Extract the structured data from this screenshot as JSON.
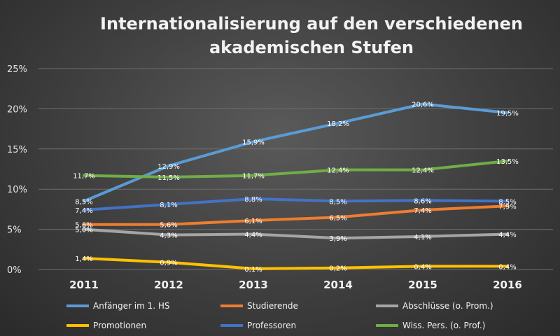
{
  "chart_data": {
    "type": "line",
    "title_lines": [
      "Internationalisierung auf den verschiedenen",
      "akademischen Stufen"
    ],
    "categories": [
      "2011",
      "2012",
      "2013",
      "2014",
      "2015",
      "2016"
    ],
    "ylim": [
      0,
      25
    ],
    "yticks": [
      0,
      5,
      10,
      15,
      20,
      25
    ],
    "ytick_labels": [
      "0%",
      "5%",
      "10%",
      "15%",
      "20%",
      "25%"
    ],
    "xlabel": "",
    "ylabel": "",
    "grid": true,
    "legend_position": "bottom",
    "series": [
      {
        "name": "Anfänger im 1. HS",
        "color": "#5b9bd5",
        "values": [
          8.5,
          12.9,
          15.9,
          18.2,
          20.6,
          19.5
        ],
        "labels": [
          "8,5%",
          "12,9%",
          "15,9%",
          "18,2%",
          "20,6%",
          "19,5%"
        ]
      },
      {
        "name": "Studierende",
        "color": "#ed7d31",
        "values": [
          5.6,
          5.6,
          6.1,
          6.5,
          7.4,
          7.9
        ],
        "labels": [
          "5,6%",
          "5,6%",
          "6,1%",
          "6,5%",
          "7,4%",
          "7,9%"
        ]
      },
      {
        "name": "Abschlüsse (o. Prom.)",
        "color": "#a5a5a5",
        "values": [
          5.0,
          4.3,
          4.4,
          3.9,
          4.1,
          4.4
        ],
        "labels": [
          "5,0%",
          "4,3%",
          "4,4%",
          "3,9%",
          "4,1%",
          "4,4%"
        ]
      },
      {
        "name": "Promotionen",
        "color": "#ffc000",
        "values": [
          1.4,
          0.9,
          0.1,
          0.2,
          0.4,
          0.4
        ],
        "labels": [
          "1,4%",
          "0,9%",
          "0,1%",
          "0,2%",
          "0,4%",
          "0,4%"
        ]
      },
      {
        "name": "Professoren",
        "color": "#4472c4",
        "values": [
          7.4,
          8.1,
          8.8,
          8.5,
          8.6,
          8.5
        ],
        "labels": [
          "7,4%",
          "8,1%",
          "8,8%",
          "8,5%",
          "8,6%",
          "8,5%"
        ]
      },
      {
        "name": "Wiss. Pers. (o. Prof.)",
        "color": "#70ad47",
        "values": [
          11.7,
          11.5,
          11.7,
          12.4,
          12.4,
          13.5
        ],
        "labels": [
          "11,7%",
          "11,5%",
          "11,7%",
          "12,4%",
          "12,4%",
          "13,5%"
        ]
      }
    ]
  }
}
